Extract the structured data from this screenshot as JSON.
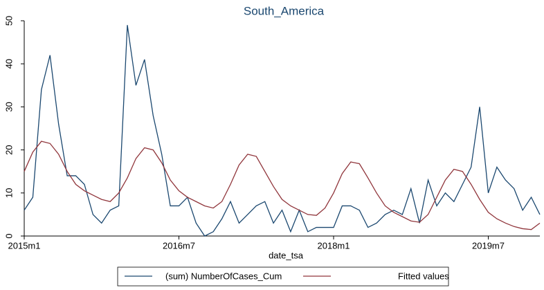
{
  "chart_data": {
    "type": "line",
    "title": "South_America",
    "x_label": "date_tsa",
    "x": [
      660,
      661,
      662,
      663,
      664,
      665,
      666,
      667,
      668,
      669,
      670,
      671,
      672,
      673,
      674,
      675,
      676,
      677,
      678,
      679,
      680,
      681,
      682,
      683,
      684,
      685,
      686,
      687,
      688,
      689,
      690,
      691,
      692,
      693,
      694,
      695,
      696,
      697,
      698,
      699,
      700,
      701,
      702,
      703,
      704,
      705,
      706,
      707,
      708,
      709,
      710,
      711,
      712,
      713,
      714,
      715,
      716,
      717,
      718,
      719,
      720
    ],
    "series": [
      {
        "name": "(sum) NumberOfCases_Cum",
        "color": "#1a476f",
        "values": [
          6,
          9,
          34,
          42,
          26,
          14,
          14,
          12,
          5,
          3,
          6,
          7,
          49,
          35,
          41,
          28,
          19,
          7,
          7,
          9,
          3,
          0,
          1,
          4,
          8,
          3,
          5,
          7,
          8,
          3,
          6,
          1,
          6,
          1,
          2,
          2,
          2,
          7,
          7,
          6,
          2,
          3,
          5,
          6,
          5,
          11,
          3,
          13,
          7,
          10,
          8,
          12,
          16,
          30,
          10,
          16,
          13,
          11,
          6,
          9,
          5
        ]
      },
      {
        "name": "Fitted values",
        "color": "#90353b",
        "values": [
          15,
          19.5,
          22,
          21.5,
          19,
          15,
          12,
          10.5,
          9.5,
          8.5,
          8,
          10,
          13.5,
          18,
          20.5,
          20,
          17,
          13,
          10.5,
          9,
          8,
          7,
          6.5,
          8,
          12,
          16.5,
          19,
          18.5,
          15,
          11.5,
          8.5,
          7,
          6,
          5,
          4.8,
          6.5,
          10,
          14.5,
          17.2,
          16.8,
          13.5,
          10,
          7,
          5.5,
          4.5,
          3.5,
          3.2,
          5,
          9,
          13,
          15.5,
          15,
          12,
          8.5,
          5.5,
          4,
          3,
          2.2,
          1.7,
          1.5,
          3
        ]
      }
    ],
    "xlim": [
      660,
      720
    ],
    "xticks": [
      {
        "value": 660,
        "label": "2015m1"
      },
      {
        "value": 678,
        "label": "2016m7"
      },
      {
        "value": 696,
        "label": "2018m1"
      },
      {
        "value": 714,
        "label": "2019m7"
      }
    ],
    "ylim": [
      0,
      50
    ],
    "yticks": [
      0,
      10,
      20,
      30,
      40,
      50
    ],
    "grid": false
  }
}
